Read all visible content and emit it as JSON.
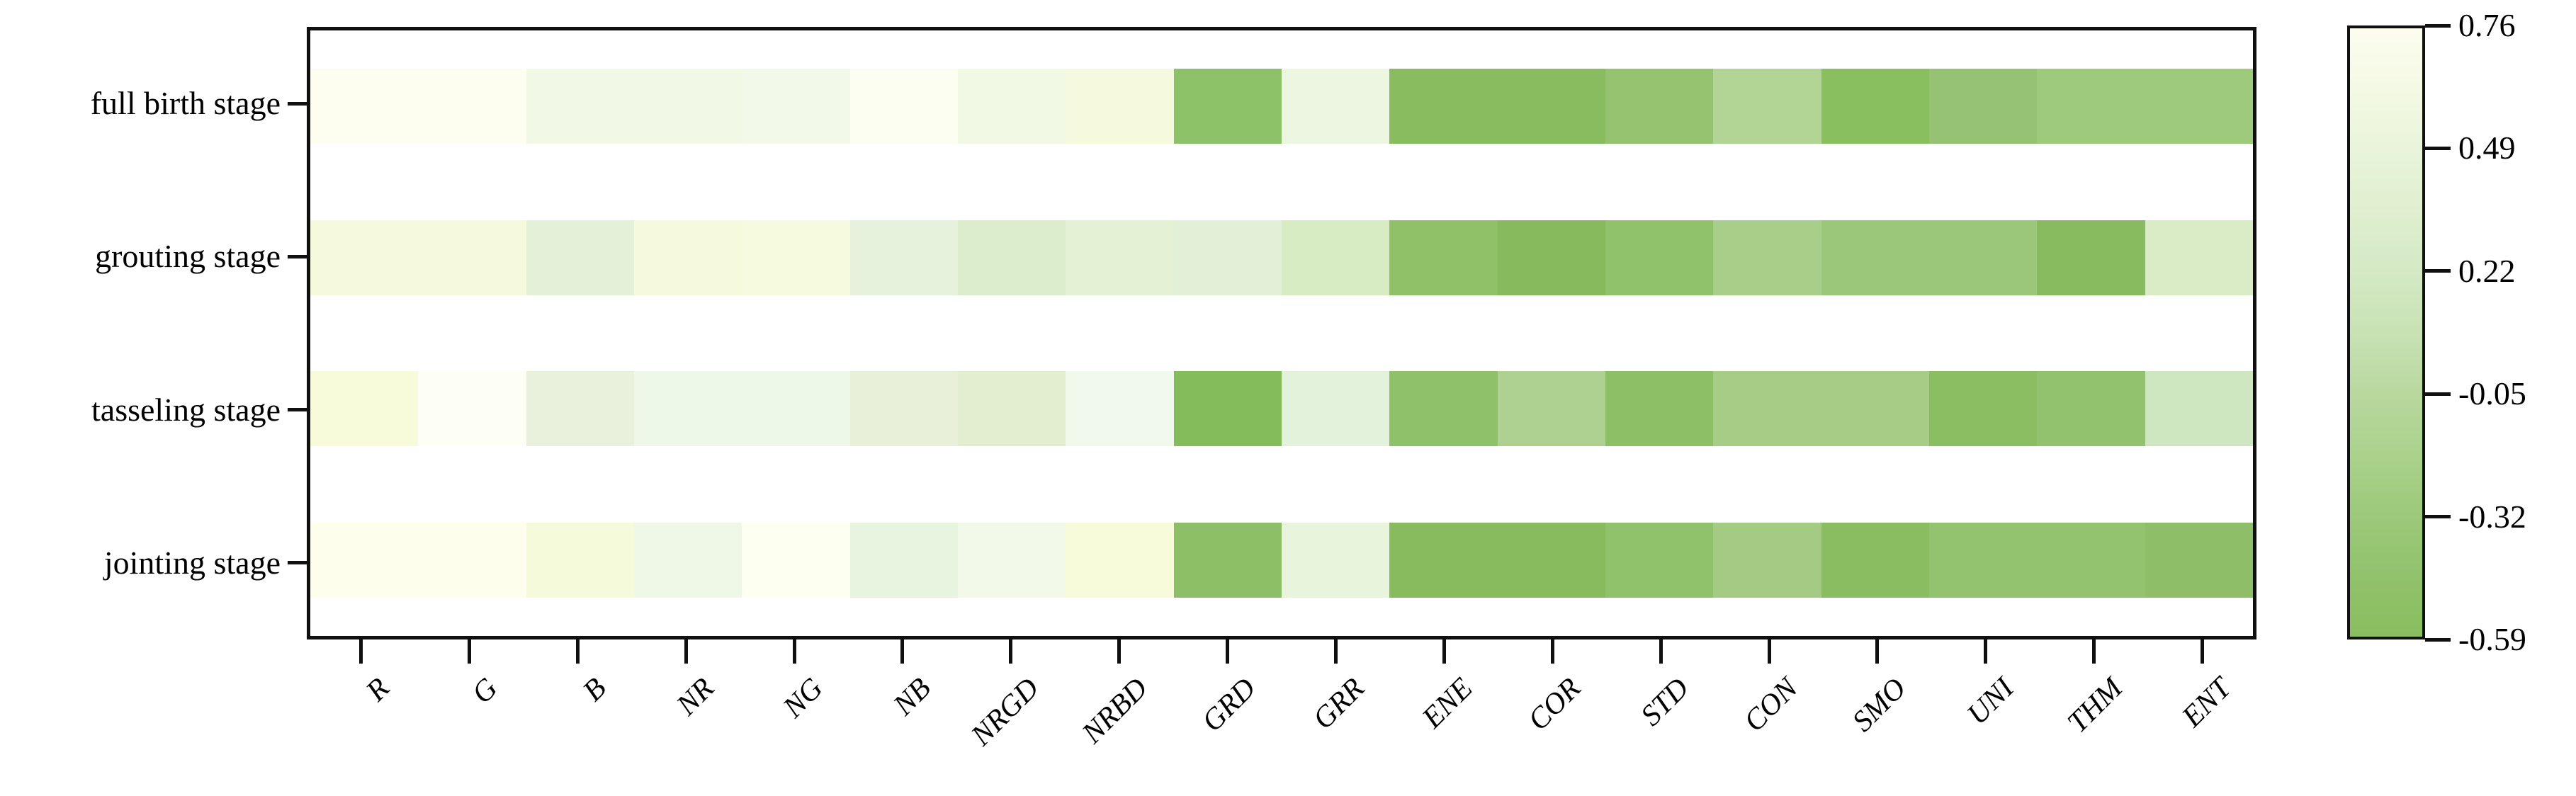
{
  "figure": {
    "kind": "correlation heatmap",
    "background": "#ffffff",
    "frame_color": "#101010"
  },
  "y_axis": {
    "labels": [
      "full birth stage",
      "grouting stage",
      "tasseling stage",
      "jointing stage"
    ]
  },
  "x_axis": {
    "labels": [
      "R",
      "G",
      "B",
      "NR",
      "NG",
      "NB",
      "NRGD",
      "NRBD",
      "GRD",
      "GRR",
      "ENE",
      "COR",
      "STD",
      "CON",
      "SMO",
      "UNI",
      "THM",
      "ENT"
    ]
  },
  "colorbar": {
    "tick_labels": [
      "0.76",
      "0.49",
      "0.22",
      "-0.05",
      "-0.32",
      "-0.59"
    ],
    "gradient_top_to_bottom": [
      "#fcfdee",
      "#f4f9e4",
      "#e9f4da",
      "#dfefcf",
      "#d4e9c4",
      "#c8e2b4",
      "#b9d89f",
      "#aad28c",
      "#9cc97a",
      "#91c26c",
      "#8abd5f"
    ]
  },
  "chart_data": {
    "type": "heatmap",
    "title": "",
    "xlabel": "",
    "ylabel": "",
    "legend_position": "right-colorbar",
    "grid": false,
    "colorbar_range": [
      0.76,
      -0.59
    ],
    "colorbar_ticks": [
      0.76,
      0.49,
      0.22,
      -0.05,
      -0.32,
      -0.59
    ],
    "rows": [
      "full birth stage",
      "grouting stage",
      "tasseling stage",
      "jointing stage"
    ],
    "columns": [
      "R",
      "G",
      "B",
      "NR",
      "NG",
      "NB",
      "NRGD",
      "NRBD",
      "GRD",
      "GRR",
      "ENE",
      "COR",
      "STD",
      "CON",
      "SMO",
      "UNI",
      "THM",
      "ENT"
    ],
    "values": [
      [
        0.73,
        0.73,
        0.6,
        0.6,
        0.63,
        0.72,
        0.6,
        0.63,
        -0.32,
        0.57,
        -0.41,
        -0.41,
        -0.21,
        0.06,
        -0.37,
        -0.2,
        -0.12,
        -0.12
      ],
      [
        0.64,
        0.64,
        0.49,
        0.64,
        0.65,
        0.52,
        0.41,
        0.48,
        0.48,
        0.36,
        -0.28,
        -0.44,
        -0.27,
        -0.05,
        -0.16,
        -0.16,
        -0.4,
        0.37
      ],
      [
        0.65,
        0.75,
        0.52,
        0.58,
        0.58,
        0.5,
        0.44,
        0.61,
        -0.46,
        0.49,
        -0.28,
        0.02,
        -0.32,
        -0.08,
        -0.08,
        -0.35,
        -0.24,
        0.29
      ],
      [
        0.73,
        0.73,
        0.64,
        0.6,
        0.73,
        0.54,
        0.61,
        0.65,
        -0.32,
        0.53,
        -0.41,
        -0.41,
        -0.27,
        -0.09,
        -0.36,
        -0.23,
        -0.23,
        -0.31
      ]
    ],
    "cell_colors": [
      [
        "#fdfeef",
        "#fdfeef",
        "#f1f8e5",
        "#f1f8e5",
        "#f3f9e8",
        "#fcfef1",
        "#f1f8e3",
        "#f5f9dd",
        "#8ec268",
        "#edf6e0",
        "#88bc5e",
        "#88bc5e",
        "#95c370",
        "#b2d494",
        "#8abf60",
        "#96c373",
        "#9eca7b",
        "#9eca7b"
      ],
      [
        "#f5fadc",
        "#f5fadc",
        "#e3f1d8",
        "#f5fadd",
        "#f6fbdf",
        "#e6f2dc",
        "#dcedcc",
        "#e4f1d4",
        "#e2f0d8",
        "#d8ecc4",
        "#90c169",
        "#86ba5c",
        "#90c16b",
        "#a8cf8a",
        "#9bc878",
        "#9bc878",
        "#88bb60",
        "#d9ecc6"
      ],
      [
        "#f7fbda",
        "#fdfff4",
        "#e9f1dc",
        "#eef8e9",
        "#eef8e9",
        "#e9f0da",
        "#e2eecf",
        "#f0f9ec",
        "#84bb5b",
        "#e3f2da",
        "#8fc06a",
        "#aed192",
        "#8dbf66",
        "#a5cd86",
        "#a5cd86",
        "#8bbd62",
        "#93c26f",
        "#cfe7c0"
      ],
      [
        "#fdfeec",
        "#fdfeec",
        "#f5fada",
        "#eff8e7",
        "#fdfff1",
        "#e7f5e0",
        "#f2f9e8",
        "#f8fbda",
        "#8dbf66",
        "#e8f5dc",
        "#87bb5e",
        "#87bb5e",
        "#90c16b",
        "#a3cb83",
        "#8abd62",
        "#94c370",
        "#94c370",
        "#8ebf68"
      ]
    ]
  }
}
